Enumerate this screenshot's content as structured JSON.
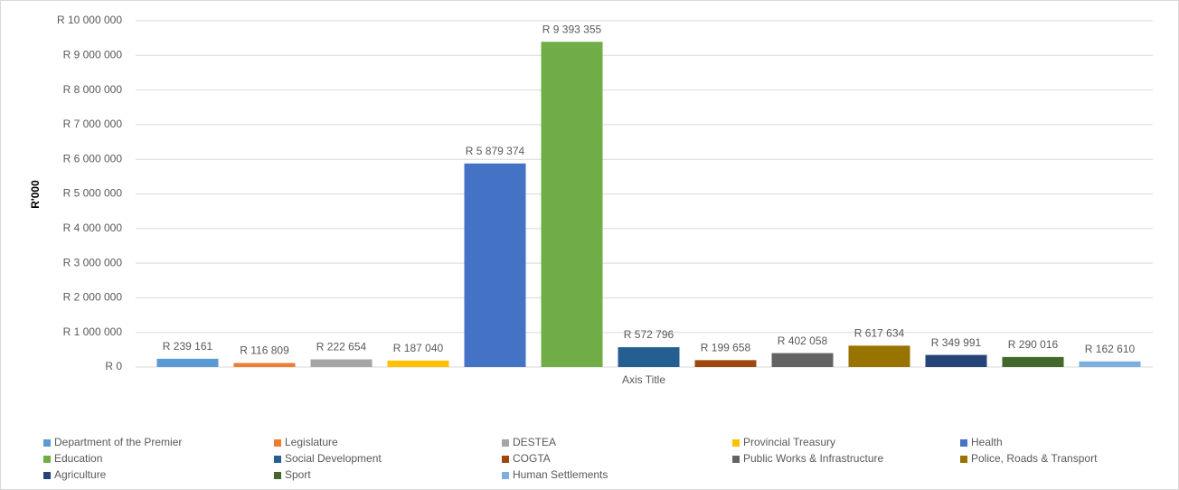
{
  "chart_data": {
    "type": "bar",
    "x_label": "Axis Title",
    "y_label": "R'000",
    "categories": [
      null
    ],
    "ylim": [
      0,
      10000000
    ],
    "yticks": [
      {
        "value": 0,
        "label": "R 0"
      },
      {
        "value": 1000000,
        "label": "R 1 000 000"
      },
      {
        "value": 2000000,
        "label": "R 2 000 000"
      },
      {
        "value": 3000000,
        "label": "R 3 000 000"
      },
      {
        "value": 4000000,
        "label": "R 4 000 000"
      },
      {
        "value": 5000000,
        "label": "R 5 000 000"
      },
      {
        "value": 6000000,
        "label": "R 6 000 000"
      },
      {
        "value": 7000000,
        "label": "R 7 000 000"
      },
      {
        "value": 8000000,
        "label": "R 8 000 000"
      },
      {
        "value": 9000000,
        "label": "R 9 000 000"
      },
      {
        "value": 10000000,
        "label": "R 10 000 000"
      }
    ],
    "grid": true,
    "legend": "bottom",
    "series": [
      {
        "name": "Department of the Premier",
        "color": "#5b9bd5",
        "values": [
          239161
        ],
        "value_labels": [
          "R 239 161"
        ]
      },
      {
        "name": "Legislature",
        "color": "#ed7d31",
        "values": [
          116809
        ],
        "value_labels": [
          "R 116 809"
        ]
      },
      {
        "name": "DESTEA",
        "color": "#a5a5a5",
        "values": [
          222654
        ],
        "value_labels": [
          "R 222 654"
        ]
      },
      {
        "name": "Provincial Treasury",
        "color": "#ffc000",
        "values": [
          187040
        ],
        "value_labels": [
          "R 187 040"
        ]
      },
      {
        "name": "Health",
        "color": "#4472c4",
        "values": [
          5879374
        ],
        "value_labels": [
          "R 5 879 374"
        ]
      },
      {
        "name": "Education",
        "color": "#70ad47",
        "values": [
          9393355
        ],
        "value_labels": [
          "R 9 393 355"
        ]
      },
      {
        "name": "Social Development",
        "color": "#255e91",
        "values": [
          572796
        ],
        "value_labels": [
          "R 572 796"
        ]
      },
      {
        "name": "COGTA",
        "color": "#9e480e",
        "values": [
          199658
        ],
        "value_labels": [
          "R 199 658"
        ]
      },
      {
        "name": "Public Works & Infrastructure",
        "color": "#636363",
        "values": [
          402058
        ],
        "value_labels": [
          "R 402 058"
        ]
      },
      {
        "name": "Police, Roads & Transport",
        "color": "#997300",
        "values": [
          617634
        ],
        "value_labels": [
          "R 617 634"
        ]
      },
      {
        "name": "Agriculture",
        "color": "#264478",
        "values": [
          349991
        ],
        "value_labels": [
          "R 349 991"
        ]
      },
      {
        "name": "Sport",
        "color": "#43682b",
        "values": [
          290016
        ],
        "value_labels": [
          "R 290 016"
        ]
      },
      {
        "name": "Human Settlements",
        "color": "#7cafdd",
        "values": [
          162610
        ],
        "value_labels": [
          "R 162 610"
        ]
      }
    ]
  }
}
